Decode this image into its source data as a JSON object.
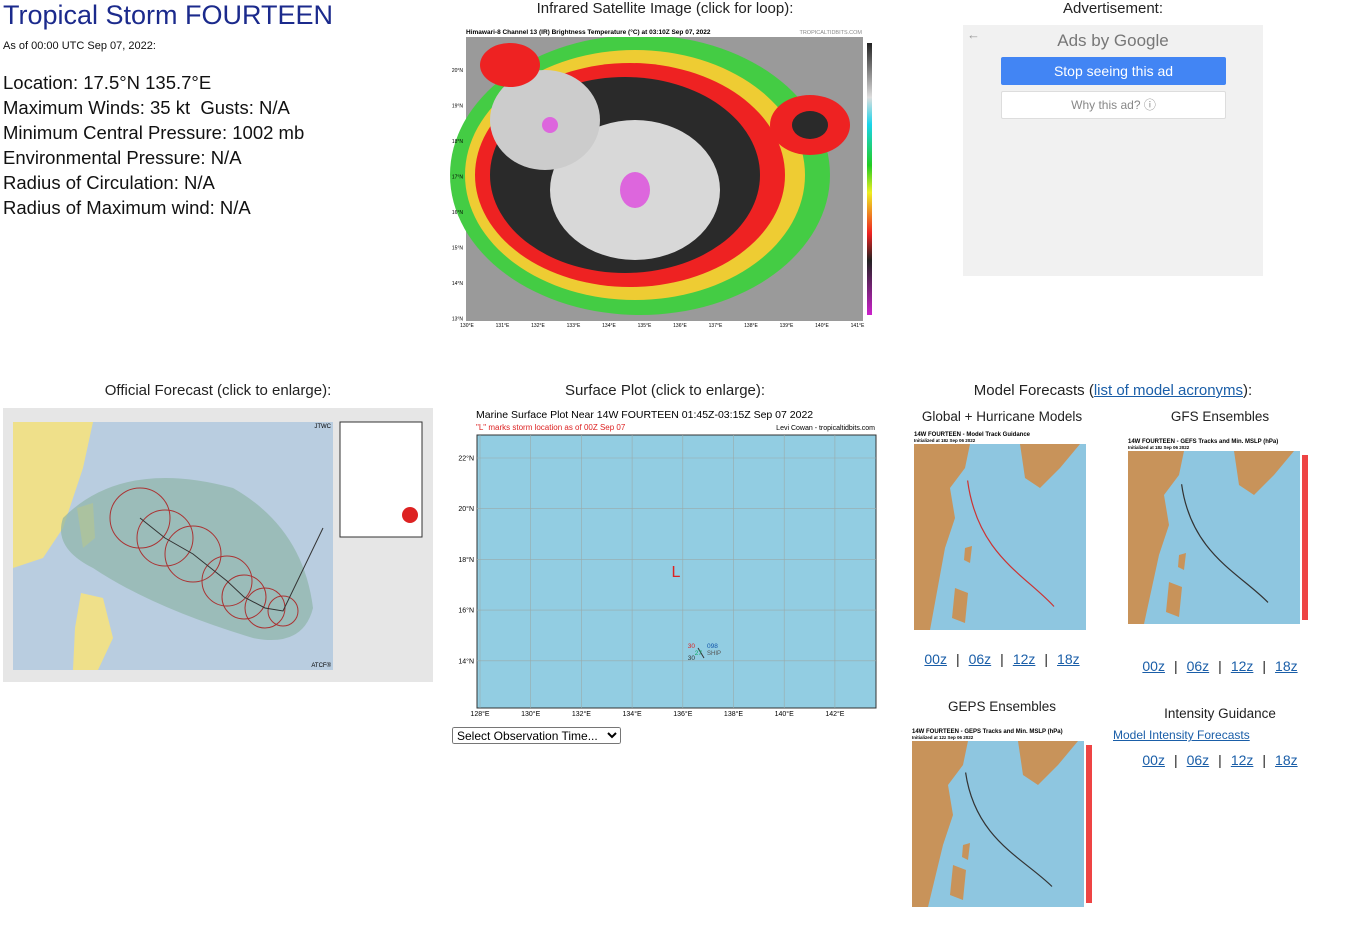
{
  "storm": {
    "title": "Tropical Storm FOURTEEN",
    "as_of": "As of 00:00 UTC Sep 07, 2022:",
    "details": [
      "Location: 17.5°N 135.7°E",
      "Maximum Winds: 35 kt  Gusts: N/A",
      "Minimum Central Pressure: 1002 mb",
      "Environmental Pressure: N/A",
      "Radius of Circulation: N/A",
      "Radius of Maximum wind: N/A"
    ]
  },
  "satellite": {
    "heading": "Infrared Satellite Image (click for loop):",
    "image_title": "Himawari-8 Channel 13 (IR) Brightness Temperature (°C) at 03:10Z Sep 07, 2022",
    "credit": "TROPICALTIDBITS.COM",
    "lat_labels": [
      "20°N",
      "19°N",
      "18°N",
      "17°N",
      "16°N",
      "15°N",
      "14°N",
      "13°N"
    ],
    "lon_labels": [
      "130°E",
      "131°E",
      "132°E",
      "133°E",
      "134°E",
      "135°E",
      "136°E",
      "137°E",
      "138°E",
      "139°E",
      "140°E",
      "141°E"
    ]
  },
  "advertisement": {
    "heading": "Advertisement:",
    "ads_by": "Ads by Google",
    "stop_button": "Stop seeing this ad",
    "why_button": "Why this ad? ⓘ"
  },
  "official_forecast": {
    "heading": "Official Forecast (click to enlarge):",
    "agency": "JTWC",
    "footer": "ATCF®"
  },
  "surface_plot": {
    "heading": "Surface Plot (click to enlarge):",
    "plot_title": "Marine Surface Plot Near 14W FOURTEEN 01:45Z-03:15Z Sep 07 2022",
    "note": "\"L\" marks storm location as of 00Z Sep 07",
    "credit": "Levi Cowan - tropicaltidbits.com",
    "lat_labels": [
      "22°N",
      "20°N",
      "18°N",
      "16°N",
      "14°N"
    ],
    "lon_labels": [
      "128°E",
      "130°E",
      "132°E",
      "134°E",
      "136°E",
      "138°E",
      "140°E",
      "142°E"
    ],
    "storm_marker": "L",
    "station": {
      "temperature": "30",
      "pressure": "098",
      "dewpoint": "27",
      "id": "SHIP",
      "visibility": "30"
    },
    "select": "Select Observation Time..."
  },
  "model_forecasts": {
    "heading_before": "Model Forecasts (",
    "link": "list of model acronyms",
    "heading_after": "):",
    "separator": "|",
    "sections": [
      {
        "title": "Global + Hurricane Models",
        "image_title": "14W FOURTEEN - Model Track Guidance",
        "image_subtitle": "Initialized at 18z Sep 06 2022",
        "runs": [
          "00z",
          "06z",
          "12z",
          "18z"
        ]
      },
      {
        "title": "GFS Ensembles",
        "image_title": "14W FOURTEEN - GEFS Tracks and Min. MSLP (hPa)",
        "image_subtitle": "Initialized at 18z Sep 06 2022",
        "runs": [
          "00z",
          "06z",
          "12z",
          "18z"
        ]
      },
      {
        "title": "GEPS Ensembles",
        "image_title": "14W FOURTEEN - GEPS Tracks and Min. MSLP (hPa)",
        "image_subtitle": "Initialized at 12z Sep 06 2022"
      },
      {
        "title": "Intensity Guidance",
        "link": "Model Intensity Forecasts",
        "runs": [
          "00z",
          "06z",
          "12z",
          "18z"
        ]
      }
    ]
  }
}
